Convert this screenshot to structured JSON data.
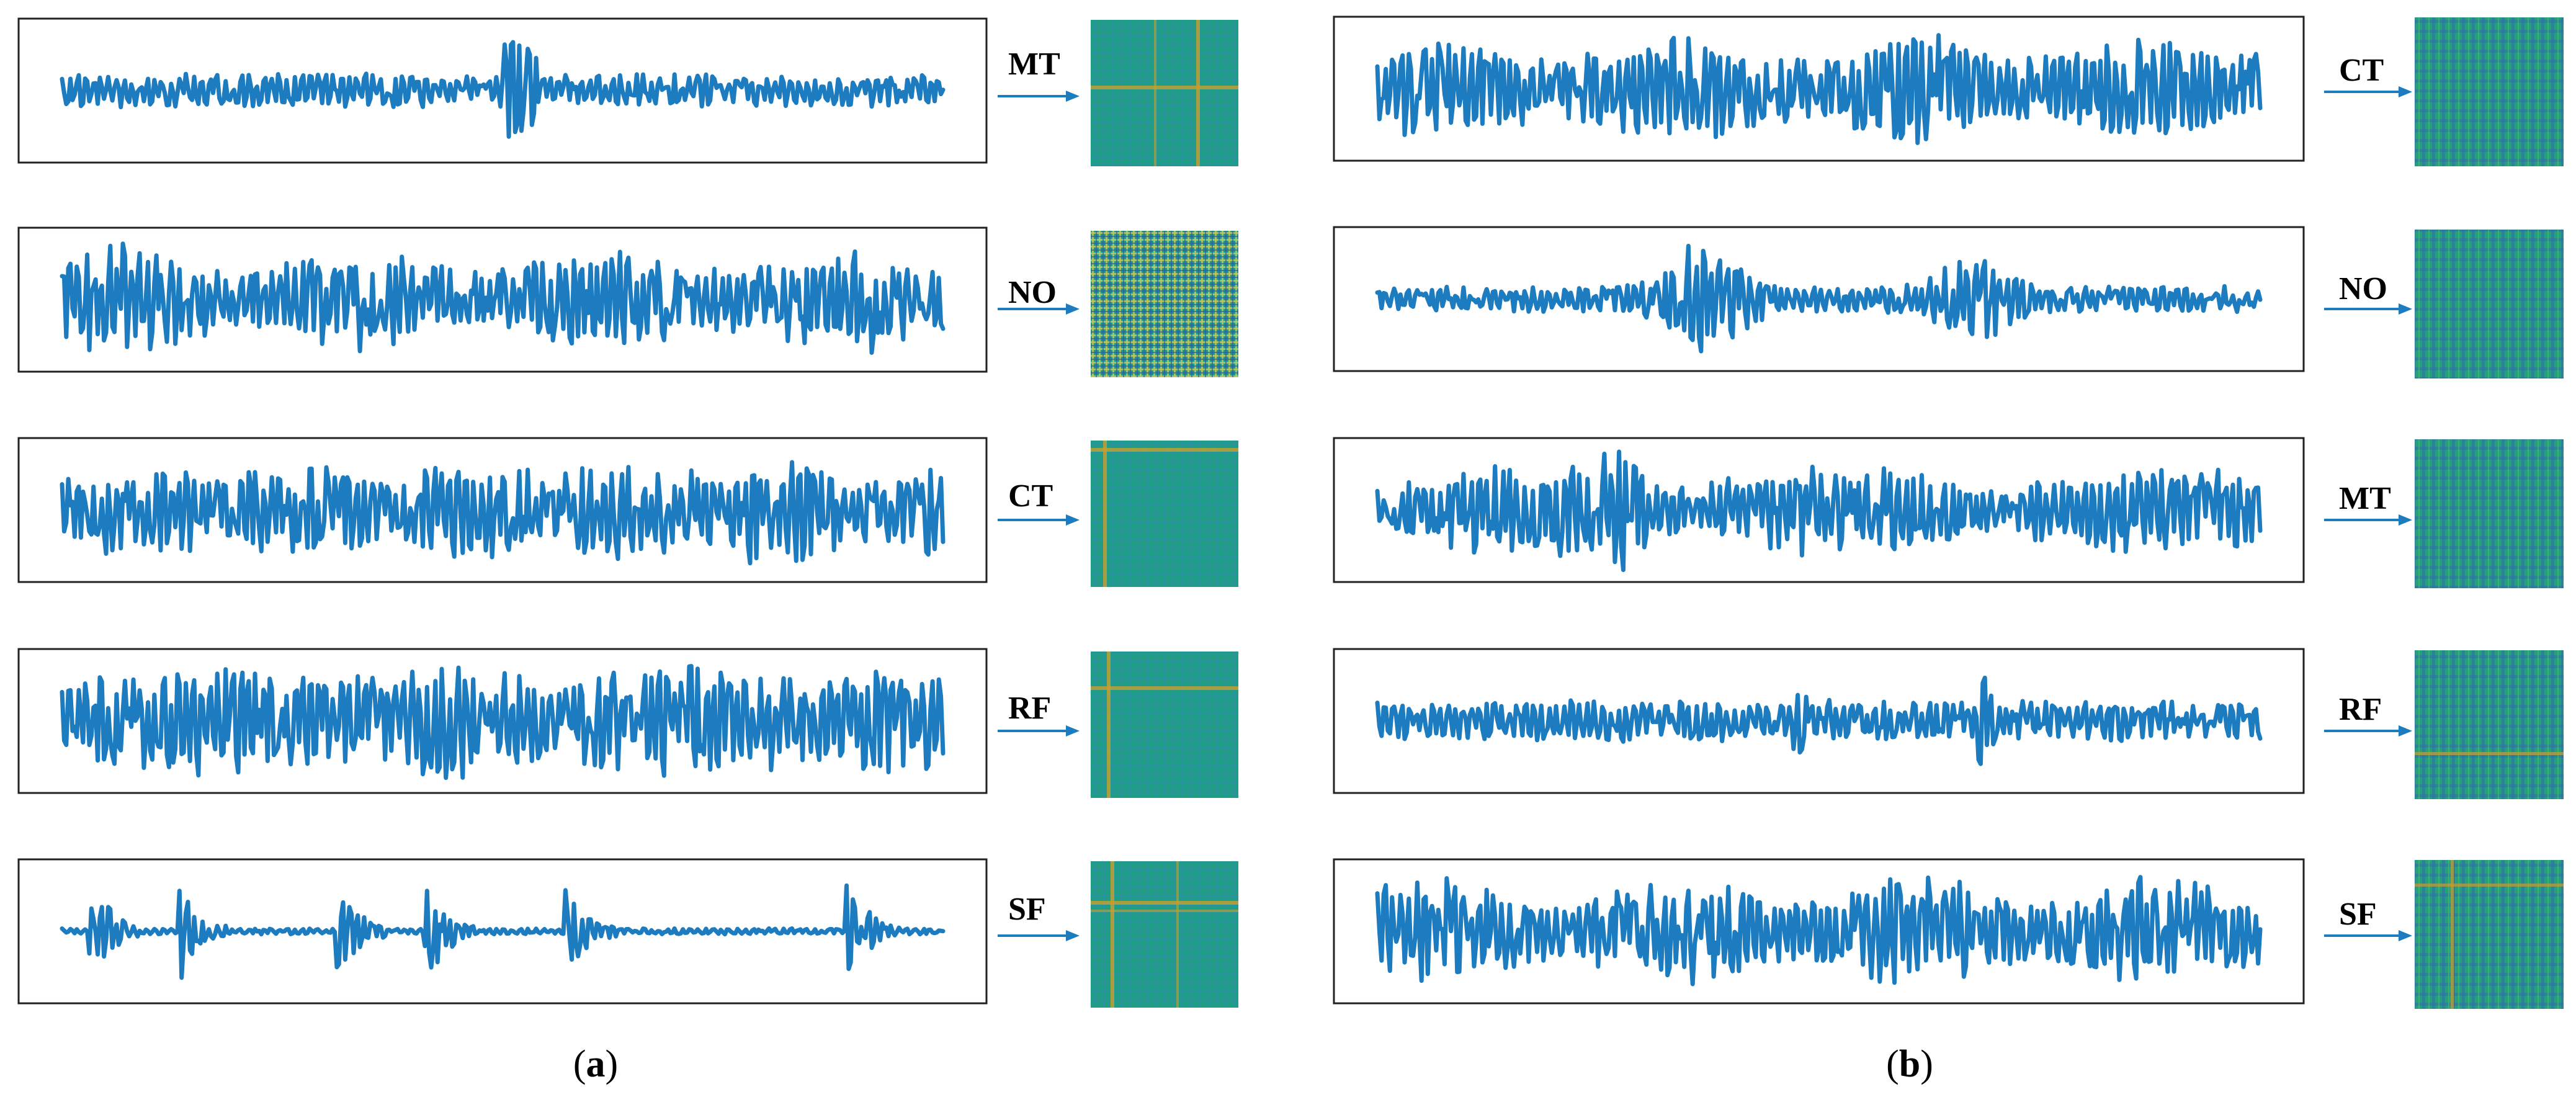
{
  "panels": [
    {
      "caption_open": "(",
      "caption_letter": "a",
      "caption_close": ")",
      "rows": [
        {
          "label": "MT",
          "style": "sparse_spike"
        },
        {
          "label": "NO",
          "style": "dense"
        },
        {
          "label": "CT",
          "style": "periodic"
        },
        {
          "label": "RF",
          "style": "periodic_strong"
        },
        {
          "label": "SF",
          "style": "bursts"
        }
      ]
    },
    {
      "caption_open": "(",
      "caption_letter": "b",
      "caption_close": ")",
      "rows": [
        {
          "label": "CT",
          "style": "dense"
        },
        {
          "label": "NO",
          "style": "modulated"
        },
        {
          "label": "MT",
          "style": "modulated_dense"
        },
        {
          "label": "RF",
          "style": "noisy_small"
        },
        {
          "label": "SF",
          "style": "dense"
        }
      ]
    }
  ],
  "colors": {
    "waveform": "#1c7cbf",
    "arrow": "#1c7cbf",
    "matrix_base": "#1e9e86",
    "matrix_dark": "#2a6fa8",
    "matrix_line": "#c8a030"
  }
}
